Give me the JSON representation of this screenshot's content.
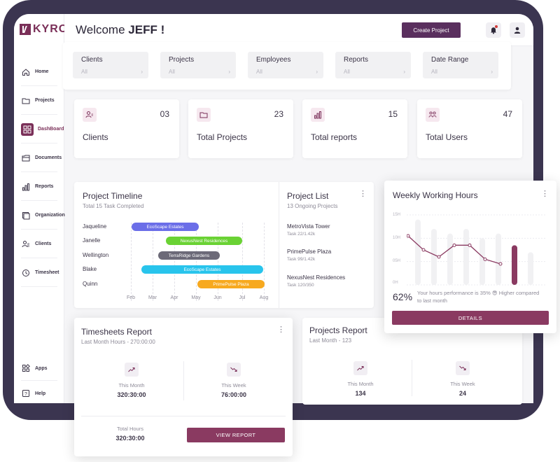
{
  "app": {
    "logo_text": "KYRO"
  },
  "sidebar": {
    "items": [
      {
        "label": "Home",
        "icon": "home-icon"
      },
      {
        "label": "Projects",
        "icon": "folder-icon"
      },
      {
        "label": "DashBoard",
        "icon": "dashboard-icon",
        "active": true
      },
      {
        "label": "Documents",
        "icon": "documents-icon"
      },
      {
        "label": "Reports",
        "icon": "reports-icon"
      },
      {
        "label": "Organization",
        "icon": "organization-icon"
      },
      {
        "label": "Clients",
        "icon": "clients-icon"
      },
      {
        "label": "Timesheet",
        "icon": "timesheet-icon"
      }
    ],
    "bottom_items": [
      {
        "label": "Apps",
        "icon": "apps-icon"
      },
      {
        "label": "Help",
        "icon": "help-icon"
      }
    ]
  },
  "header": {
    "welcome_prefix": "Welcome",
    "user_name": "JEFF !",
    "create_button": "Create Project"
  },
  "filters": [
    {
      "label": "Clients",
      "value": "All"
    },
    {
      "label": "Projects",
      "value": "All"
    },
    {
      "label": "Employees",
      "value": "All"
    },
    {
      "label": "Reports",
      "value": "All"
    },
    {
      "label": "Date Range",
      "value": "All"
    }
  ],
  "stats": [
    {
      "label": "Clients",
      "value": "03"
    },
    {
      "label": "Total Projects",
      "value": "23"
    },
    {
      "label": "Total reports",
      "value": "15"
    },
    {
      "label": "Total Users",
      "value": "47"
    }
  ],
  "timeline": {
    "title": "Project Timeline",
    "subtitle": "Total 15 Task Completed",
    "months": [
      "Feb",
      "Mar",
      "Apr",
      "May",
      "Jun",
      "Jul",
      "Aug"
    ],
    "rows": [
      {
        "name": "Jaqueline",
        "project": "EcoScape Estates",
        "color": "#6b6ee8"
      },
      {
        "name": "Janelle",
        "project": "NexusNest Residences",
        "color": "#6ad234"
      },
      {
        "name": "Wellington",
        "project": "TerraRidge Gardens",
        "color": "#6c6a78"
      },
      {
        "name": "Blake",
        "project": "EcoScape Estates",
        "color": "#28c4ec"
      },
      {
        "name": "Quinn",
        "project": "PrimePulse Plaza",
        "color": "#f7a91f"
      }
    ]
  },
  "project_list": {
    "title": "Project List",
    "subtitle": "13 Ongoing Projects",
    "items": [
      {
        "name": "MetroVista Tower",
        "task": "Task 22/1.42k"
      },
      {
        "name": "PrimePulse Plaza",
        "task": "Task 99/1.42k"
      },
      {
        "name": "NexusNest Residences",
        "task": "Task 120/350"
      }
    ]
  },
  "weekly": {
    "title": "Weekly Working Hours",
    "axis": [
      "15H",
      "10H",
      "05H",
      "0H"
    ],
    "line_values": [
      10.5,
      7.5,
      6.0,
      8.5,
      8.5,
      5.5,
      4.5
    ],
    "bar_values": [
      14,
      12,
      11,
      12,
      10,
      11,
      8.5,
      7
    ],
    "highlight_bar": 6,
    "percent": "62%",
    "note": "Your hours performance is 35% 😎 Higher compared to last month",
    "button": "DETAILS"
  },
  "timesheets": {
    "title": "Timesheets Report",
    "subtitle": "Last Month Hours - 270:00:00",
    "this_month_label": "This Month",
    "this_month_value": "320:30:00",
    "this_week_label": "This Week",
    "this_week_value": "76:00:00",
    "total_label": "Total Hours",
    "total_value": "320:30:00",
    "button": "VIEW REPORT"
  },
  "projects_report": {
    "title": "Projects Report",
    "subtitle": "Last Month - 123",
    "this_month_label": "This Month",
    "this_month_value": "134",
    "this_week_label": "This Week",
    "this_week_value": "24"
  },
  "colors": {
    "brand": "#7a2f58",
    "accent_button": "#8a3a61",
    "frame": "#3b3550"
  }
}
